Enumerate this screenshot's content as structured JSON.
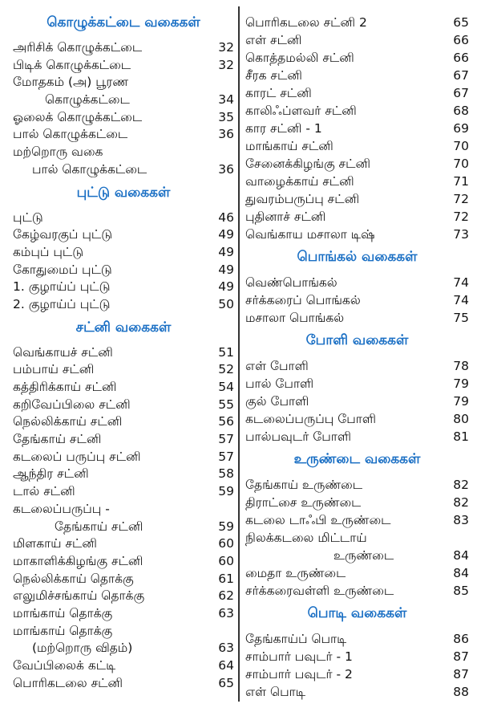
{
  "left": [
    {
      "heading": "கொழுக்கட்டை வகைகள்",
      "items": [
        {
          "text": "அரிசிக் கொழுக்கட்டை",
          "page": "32"
        },
        {
          "text": "பிடிக் கொழுக்கட்டை",
          "page": "32"
        },
        {
          "text": "மோதகம் (அ) பூரண",
          "cont": "கொழுக்கட்டை",
          "indent": "indent1",
          "page": "34"
        },
        {
          "text": "ஓலைக் கொழுக்கட்டை",
          "page": "35"
        },
        {
          "text": "பால் கொழுக்கட்டை",
          "page": "36"
        },
        {
          "text": "மற்றொரு வகை",
          "cont": "பால் கொழுக்கட்டை",
          "indent": "indent2",
          "page": "36"
        }
      ]
    },
    {
      "heading": "புட்டு வகைகள்",
      "items": [
        {
          "text": "புட்டு",
          "page": "46"
        },
        {
          "text": "கேழ்வரகுப் புட்டு",
          "page": "49"
        },
        {
          "text": "கம்புப் புட்டு",
          "page": "49"
        },
        {
          "text": "கோதுமைப் புட்டு",
          "page": "49"
        },
        {
          "text": "1. குழாய்ப் புட்டு",
          "page": "49"
        },
        {
          "text": "2. குழாய்ப் புட்டு",
          "page": "50"
        }
      ]
    },
    {
      "heading": "சட்னி வகைகள்",
      "items": [
        {
          "text": "வெங்காயச் சட்னி",
          "page": "51"
        },
        {
          "text": "பம்பாய் சட்னி",
          "page": "52"
        },
        {
          "text": "கத்திரிக்காய் சட்னி",
          "page": "54"
        },
        {
          "text": "கறிவேப்பிலை சட்னி",
          "page": "55"
        },
        {
          "text": "நெல்லிக்காய் சட்னி",
          "page": "56"
        },
        {
          "text": "தேங்காய் சட்னி",
          "page": "57"
        },
        {
          "text": "கடலைப் பருப்பு சட்னி",
          "page": "57"
        },
        {
          "text": "ஆந்திர சட்னி",
          "page": "58"
        },
        {
          "text": "டால் சட்னி",
          "page": "59"
        },
        {
          "text": "கடலைப்பருப்பு -",
          "cont": "தேங்காய் சட்னி",
          "indent": "indent3",
          "page": "59"
        },
        {
          "text": "மிளகாய் சட்னி",
          "page": "60"
        },
        {
          "text": "மாகாளிக்கிழங்கு சட்னி",
          "page": "60"
        },
        {
          "text": "நெல்லிக்காய் தொக்கு",
          "page": "61"
        },
        {
          "text": "எலுமிச்சங்காய் தொக்கு",
          "page": "62"
        },
        {
          "text": "மாங்காய் தொக்கு",
          "page": "63"
        },
        {
          "text": "மாங்காய் தொக்கு",
          "cont": "(மற்றொரு விதம்)",
          "indent": "indent2",
          "page": "63"
        },
        {
          "text": "வேப்பிலைக் கட்டி",
          "page": "64"
        },
        {
          "text": "பொரிகடலை சட்னி",
          "page": "65"
        }
      ]
    }
  ],
  "right": [
    {
      "heading": "",
      "items": [
        {
          "text": "பொரிகடலை சட்னி 2",
          "page": "65"
        },
        {
          "text": "எள் சட்னி",
          "page": "66"
        },
        {
          "text": "கொத்தமல்லி சட்னி",
          "page": "66"
        },
        {
          "text": "சீரக சட்னி",
          "page": "67"
        },
        {
          "text": "காரட் சட்னி",
          "page": "67"
        },
        {
          "text": "காலிஃப்ளவர் சட்னி",
          "page": "68"
        },
        {
          "text": "கார சட்னி - 1",
          "page": "69"
        },
        {
          "text": "மாங்காய் சட்னி",
          "page": "70"
        },
        {
          "text": "சேனைக்கிழங்கு சட்னி",
          "page": "70"
        },
        {
          "text": "வாழைக்காய் சட்னி",
          "page": "71"
        },
        {
          "text": "துவரம்பருப்பு சட்னி",
          "page": "72"
        },
        {
          "text": "புதினாச் சட்னி",
          "page": "72"
        },
        {
          "text": "வெங்காய மசாலா டிஷ்",
          "page": "73"
        }
      ]
    },
    {
      "heading": "பொங்கல் வகைகள்",
      "items": [
        {
          "text": "வெண்பொங்கல்",
          "page": "74"
        },
        {
          "text": "சர்க்கரைப் பொங்கல்",
          "page": "74"
        },
        {
          "text": "மசாலா பொங்கல்",
          "page": "75"
        }
      ]
    },
    {
      "heading": "போளி வகைகள்",
      "items": [
        {
          "text": "எள் போளி",
          "page": "78"
        },
        {
          "text": "பால் போளி",
          "page": "79"
        },
        {
          "text": "குல் போளி",
          "page": "79"
        },
        {
          "text": "கடலைப்பருப்பு போளி",
          "page": "80"
        },
        {
          "text": "பால்பவுடர் போளி",
          "page": "81"
        }
      ]
    },
    {
      "heading": "உருண்டை வகைகள்",
      "items": [
        {
          "text": "தேங்காய் உருண்டை",
          "page": "82"
        },
        {
          "text": "திராட்சை உருண்டை",
          "page": "82"
        },
        {
          "text": "கடலை டாஃபி உருண்டை",
          "page": "83"
        },
        {
          "text": "நிலக்கடலை மிட்டாய்",
          "cont": "உருண்டை",
          "indent": "indent4",
          "page": "84"
        },
        {
          "text": "மைதா உருண்டை",
          "page": "84"
        },
        {
          "text": "சர்க்கரைவள்ளி உருண்டை",
          "page": "85"
        }
      ]
    },
    {
      "heading": "பொடி வகைகள்",
      "items": [
        {
          "text": "தேங்காய்ப் பொடி",
          "page": "86"
        },
        {
          "text": "சாம்பார் பவுடர் - 1",
          "page": "87"
        },
        {
          "text": "சாம்பார் பவுடர் - 2",
          "page": "87"
        },
        {
          "text": "எள் பொடி",
          "page": "88"
        }
      ]
    }
  ]
}
